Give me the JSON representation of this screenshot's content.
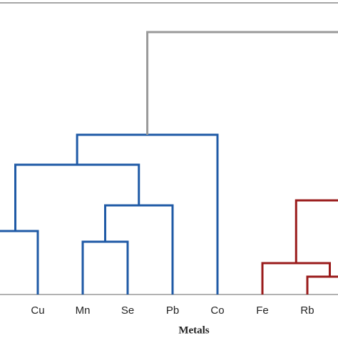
{
  "chart_data": {
    "type": "dendrogram",
    "x_label": "Metals",
    "leaves": [
      null,
      "Cu",
      "Mn",
      "Se",
      "Pb",
      "Co",
      "Fe",
      "Rb",
      null,
      null
    ],
    "merges": [
      {
        "left": 2,
        "right": 3,
        "height": 74,
        "color": "#1f5aa6"
      },
      {
        "left": 10,
        "right": 4,
        "height": 125,
        "color": "#1f5aa6"
      },
      {
        "left": 0,
        "right": 1,
        "height": 89,
        "color": "#1f5aa6"
      },
      {
        "left": 12,
        "right": 11,
        "height": 182,
        "color": "#1f5aa6"
      },
      {
        "left": 13,
        "right": 5,
        "height": 224,
        "color": "#1f5aa6"
      },
      {
        "left": 7,
        "right": 8,
        "height": 25,
        "color": "#9a1b1b"
      },
      {
        "left": 6,
        "right": 15,
        "height": 44,
        "color": "#9a1b1b"
      },
      {
        "left": 16,
        "right": 9,
        "height": 132,
        "color": "#9a1b1b"
      },
      {
        "left": 14,
        "right": 17,
        "height": 368,
        "color": "#9a9a9a"
      }
    ],
    "ylim": [
      0,
      409
    ]
  }
}
